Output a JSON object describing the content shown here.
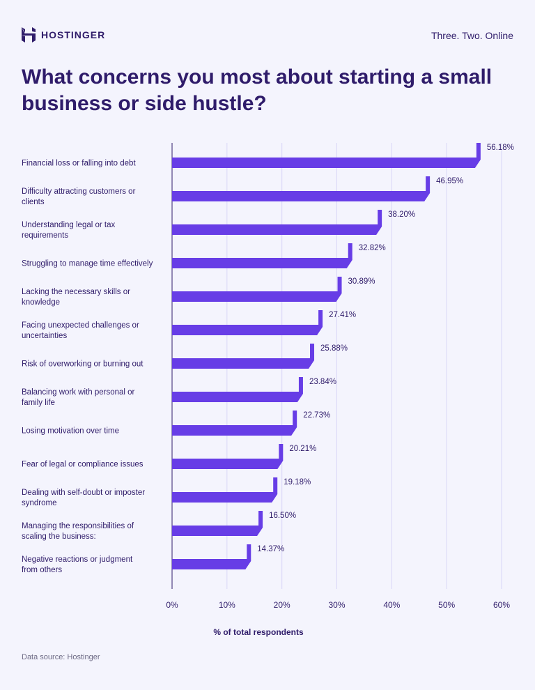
{
  "header": {
    "brand": "HOSTINGER",
    "tagline": "Three. Two. Online",
    "title": "What concerns you most about starting a small business or side hustle?"
  },
  "colors": {
    "bar": "#673de6",
    "text": "#2f1c6a",
    "grid": "#d9d6f7",
    "background": "#f4f4fd"
  },
  "chart_data": {
    "type": "bar",
    "orientation": "horizontal",
    "title": "What concerns you most about starting a small business or side hustle?",
    "categories": [
      [
        "Financial loss or falling into debt"
      ],
      [
        "Difficulty attracting customers or",
        "clients"
      ],
      [
        "Understanding legal or tax",
        "requirements"
      ],
      [
        "Struggling to manage time effectively"
      ],
      [
        "Lacking the necessary skills or",
        "knowledge"
      ],
      [
        "Facing unexpected challenges or",
        "uncertainties"
      ],
      [
        "Risk of overworking or burning out"
      ],
      [
        "Balancing work with personal or",
        "family life"
      ],
      [
        "Losing motivation over time"
      ],
      [
        "Fear of legal or compliance issues"
      ],
      [
        "Dealing with self-doubt or imposter",
        "syndrome"
      ],
      [
        "Managing the responsibilities of",
        "scaling the business:"
      ],
      [
        "Negative reactions or judgment",
        "from others"
      ]
    ],
    "values": [
      56.18,
      46.95,
      38.2,
      32.82,
      30.89,
      27.41,
      25.88,
      23.84,
      22.73,
      20.21,
      19.18,
      16.5,
      14.37
    ],
    "value_labels": [
      "56.18%",
      "46.95%",
      "38.20%",
      "32.82%",
      "30.89%",
      "27.41%",
      "25.88%",
      "23.84%",
      "22.73%",
      "20.21%",
      "19.18%",
      "16.50%",
      "14.37%"
    ],
    "xlabel": "% of total respondents",
    "xlim": [
      0,
      60
    ],
    "xticks": [
      "0%",
      "10%",
      "20%",
      "30%",
      "40%",
      "50%",
      "60%"
    ],
    "grid": true
  },
  "footer": {
    "source": "Data source: Hostinger"
  }
}
